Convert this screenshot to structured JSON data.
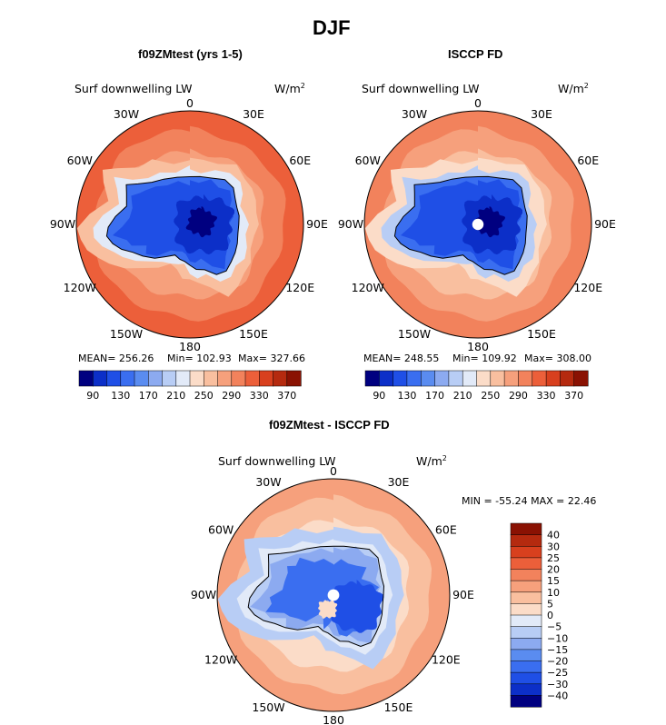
{
  "page_title": "DJF",
  "colors": {
    "seq": [
      "#000080",
      "#0c2fc8",
      "#1f4fe6",
      "#3a6ef0",
      "#5a8cf0",
      "#8caaf0",
      "#b8cdf5",
      "#e2eaf8",
      "#fbdcc8",
      "#f9bf9f",
      "#f6a07c",
      "#f2825c",
      "#ec5f3a",
      "#d8401e",
      "#b52a0f",
      "#8a1203"
    ],
    "diff": [
      "#000080",
      "#0c2fc8",
      "#1f4fe6",
      "#3a6ef0",
      "#5a8cf0",
      "#8caaf0",
      "#b8cdf5",
      "#e2eaf8",
      "#fbdcc8",
      "#f9bf9f",
      "#f6a07c",
      "#f2825c",
      "#ec5f3a",
      "#d8401e",
      "#b52a0f",
      "#8a1203"
    ],
    "coast": "#000000"
  },
  "chart_data": [
    {
      "type": "polar-contour-map",
      "id": "model",
      "title": "f09ZMtest (yrs 1-5)",
      "field_label": "Surf downwelling LW",
      "units": "W/m",
      "units_sup": "2",
      "lon_labels": [
        "0",
        "30E",
        "60E",
        "90E",
        "120E",
        "150E",
        "180",
        "150W",
        "120W",
        "90W",
        "60W",
        "30W"
      ],
      "stats": {
        "mean_label": "MEAN= 256.26",
        "min_label": "Min= 102.93",
        "max_label": "Max= 327.66"
      },
      "colorbar_levels": [
        "90",
        "130",
        "170",
        "210",
        "250",
        "290",
        "330",
        "370"
      ],
      "bands": [
        12,
        11,
        10,
        9,
        7,
        3
      ],
      "min_value": 102.93,
      "max_value": 327.66,
      "mean_value": 256.26
    },
    {
      "type": "polar-contour-map",
      "id": "obs",
      "title": "ISCCP FD",
      "field_label": "Surf downwelling LW",
      "units": "W/m",
      "units_sup": "2",
      "lon_labels": [
        "0",
        "30E",
        "60E",
        "90E",
        "120E",
        "150E",
        "180",
        "150W",
        "120W",
        "90W",
        "60W",
        "30W"
      ],
      "stats": {
        "mean_label": "MEAN= 248.55",
        "min_label": "Min= 109.92",
        "max_label": "Max= 308.00"
      },
      "colorbar_levels": [
        "90",
        "130",
        "170",
        "210",
        "250",
        "290",
        "330",
        "370"
      ],
      "bands": [
        11,
        10,
        9,
        8,
        6,
        3
      ],
      "min_value": 109.92,
      "max_value": 308.0,
      "mean_value": 248.55
    },
    {
      "type": "polar-contour-map",
      "id": "diff",
      "title": "f09ZMtest - ISCCP FD",
      "field_label": "Surf downwelling LW",
      "units": "W/m",
      "units_sup": "2",
      "lon_labels": [
        "0",
        "30E",
        "60E",
        "90E",
        "120E",
        "150E",
        "180",
        "150W",
        "120W",
        "90W",
        "60W",
        "30W"
      ],
      "stats": {
        "minmax_label": "MIN = -55.24 MAX =  22.46"
      },
      "colorbar_levels": [
        "40",
        "30",
        "25",
        "20",
        "15",
        "10",
        "5",
        "0",
        "−5",
        "−10",
        "−15",
        "−20",
        "−25",
        "−30",
        "−40"
      ],
      "bands": [
        10,
        9,
        8,
        6,
        4,
        2
      ],
      "min_value": -55.24,
      "max_value": 22.46
    }
  ]
}
